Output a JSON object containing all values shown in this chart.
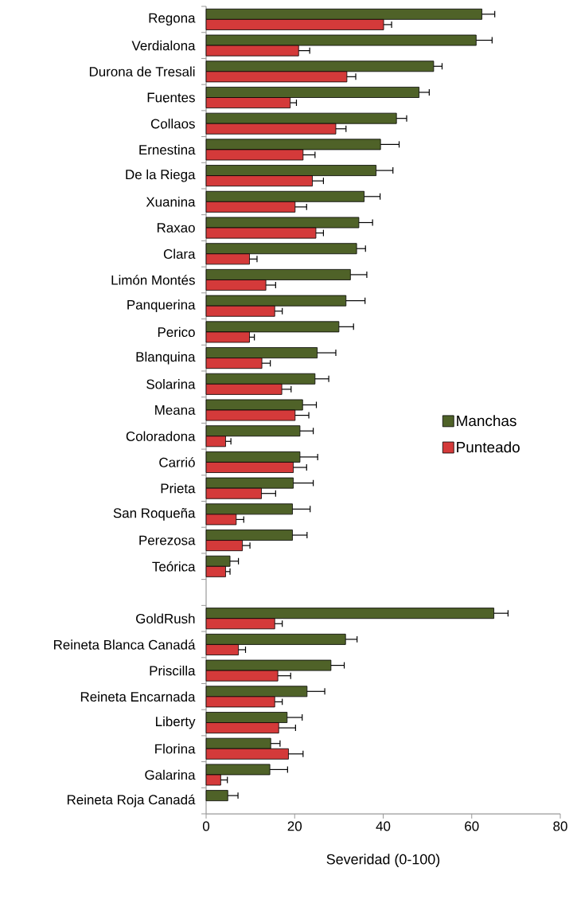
{
  "chart_data": {
    "type": "bar",
    "orientation": "horizontal",
    "xlabel": "Severidad (0-100)",
    "categories": [
      "Regona",
      "Verdialona",
      "Durona de Tresali",
      "Fuentes",
      "Collaos",
      "Ernestina",
      "De la Riega",
      "Xuanina",
      "Raxao",
      "Clara",
      "Limón Montés",
      "Panquerina",
      "Perico",
      "Blanquina",
      "Solarina",
      "Meana",
      "Coloradona",
      "Carrió",
      "Prieta",
      "San Roqueña",
      "Perezosa",
      "Teórica",
      null,
      "GoldRush",
      "Reineta Blanca Canadá",
      "Priscilla",
      "Reineta Encarnada",
      "Liberty",
      "Florina",
      "Galarina",
      "Reineta Roja Canadá"
    ],
    "series": [
      {
        "name": "Manchas",
        "color": "#4f6228",
        "values": [
          62.3,
          61.0,
          51.4,
          48.1,
          43.0,
          39.4,
          38.4,
          35.7,
          34.5,
          34.0,
          32.6,
          31.6,
          30.0,
          25.1,
          24.6,
          21.8,
          21.2,
          21.2,
          19.7,
          19.5,
          19.5,
          5.4,
          null,
          65.0,
          31.5,
          28.2,
          22.8,
          18.3,
          14.6,
          14.4,
          4.9
        ],
        "errors": [
          2.9,
          3.6,
          1.9,
          2.3,
          2.3,
          4.2,
          3.8,
          3.6,
          3.1,
          2.0,
          3.7,
          4.3,
          3.3,
          4.2,
          3.1,
          3.1,
          3.0,
          4.0,
          4.5,
          4.0,
          3.3,
          1.9,
          null,
          3.2,
          2.6,
          3.0,
          4.0,
          3.4,
          2.1,
          4.0,
          2.3
        ]
      },
      {
        "name": "Punteado",
        "color": "#d43a3a",
        "values": [
          40.1,
          20.9,
          31.8,
          19.0,
          29.3,
          21.9,
          24.0,
          20.1,
          24.8,
          9.8,
          13.5,
          15.5,
          9.8,
          12.6,
          17.1,
          20.1,
          4.4,
          19.7,
          12.5,
          6.8,
          8.2,
          4.4,
          null,
          15.5,
          7.3,
          16.2,
          15.5,
          16.4,
          18.6,
          3.3,
          null
        ],
        "errors": [
          1.8,
          2.5,
          2.0,
          1.4,
          2.3,
          2.7,
          2.5,
          2.6,
          1.7,
          1.7,
          2.2,
          1.7,
          1.1,
          1.9,
          2.1,
          3.1,
          1.2,
          3.0,
          3.2,
          1.7,
          1.7,
          1.0,
          null,
          1.7,
          1.6,
          2.9,
          1.7,
          3.8,
          3.3,
          1.5,
          null
        ]
      }
    ],
    "xlim": [
      0,
      80
    ],
    "xticks": [
      0,
      20,
      40,
      60,
      80
    ],
    "legend": "right",
    "grid": false
  }
}
